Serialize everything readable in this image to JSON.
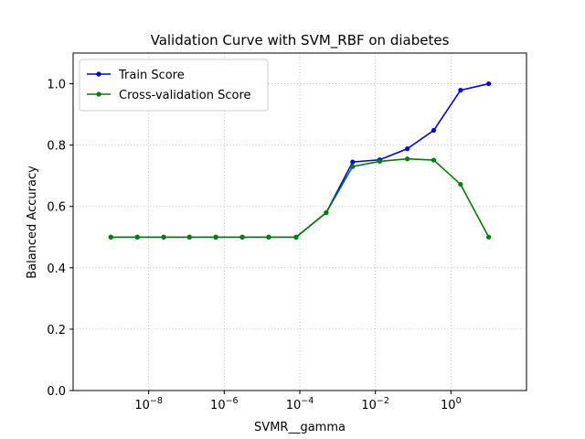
{
  "chart_data": {
    "type": "line",
    "title": "Validation Curve with SVM_RBF on diabetes",
    "xlabel": "SVMR__gamma",
    "ylabel": "Balanced Accuracy",
    "xscale": "log",
    "xlim": [
      1e-10,
      100
    ],
    "ylim": [
      0.0,
      1.1
    ],
    "grid": true,
    "legend_position": "top-left",
    "x": [
      1e-09,
      5e-09,
      2.5e-08,
      1.2e-07,
      6e-07,
      3e-06,
      1.5e-05,
      8e-05,
      0.0005,
      0.0025,
      0.013,
      0.07,
      0.35,
      1.8,
      10
    ],
    "series": [
      {
        "name": "Train Score",
        "color": "#0000ff",
        "values": [
          0.5,
          0.5,
          0.5,
          0.5,
          0.5,
          0.5,
          0.5,
          0.5,
          0.58,
          0.745,
          0.752,
          0.788,
          0.848,
          0.979,
          1.0
        ]
      },
      {
        "name": "Cross-validation Score",
        "color": "#008000",
        "values": [
          0.5,
          0.5,
          0.5,
          0.5,
          0.5,
          0.5,
          0.5,
          0.5,
          0.58,
          0.73,
          0.747,
          0.755,
          0.751,
          0.672,
          0.5
        ]
      }
    ],
    "x_ticks": [
      {
        "value": 1e-08,
        "base": "10",
        "exp": "−8"
      },
      {
        "value": 1e-06,
        "base": "10",
        "exp": "−6"
      },
      {
        "value": 0.0001,
        "base": "10",
        "exp": "−4"
      },
      {
        "value": 0.01,
        "base": "10",
        "exp": "−2"
      },
      {
        "value": 1,
        "base": "10",
        "exp": "0"
      }
    ],
    "y_ticks": [
      {
        "value": 0.0,
        "label": "0.0"
      },
      {
        "value": 0.2,
        "label": "0.2"
      },
      {
        "value": 0.4,
        "label": "0.4"
      },
      {
        "value": 0.6,
        "label": "0.6"
      },
      {
        "value": 0.8,
        "label": "0.8"
      },
      {
        "value": 1.0,
        "label": "1.0"
      }
    ]
  }
}
